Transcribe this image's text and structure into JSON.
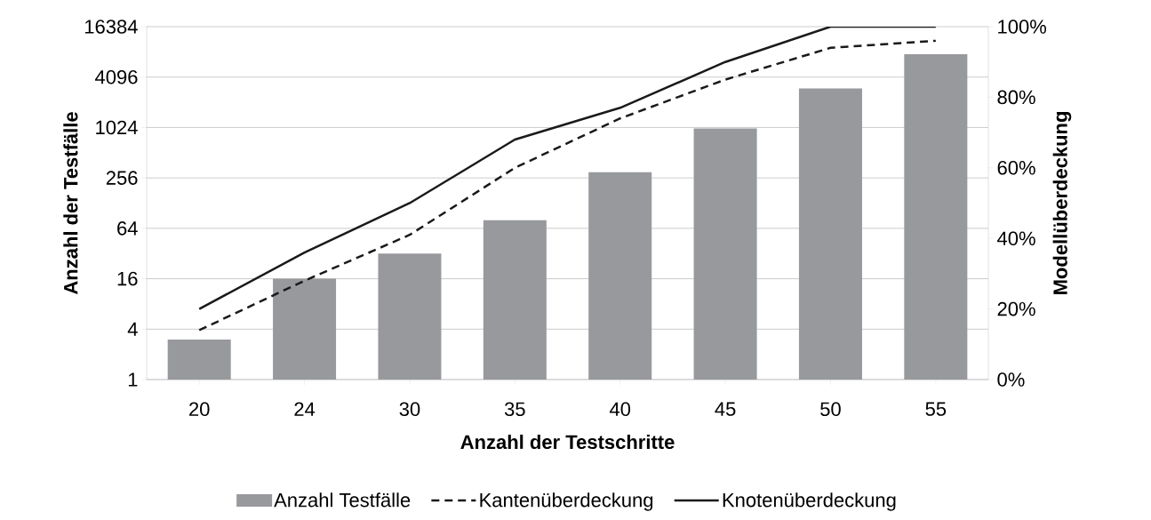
{
  "chart_data": {
    "type": "bar",
    "xlabel": "Anzahl der Testschritte",
    "ylabel": "Anzahl der Testfälle",
    "y2label": "Modellüberdeckung",
    "categories": [
      "20",
      "24",
      "30",
      "35",
      "40",
      "45",
      "50",
      "55"
    ],
    "series": [
      {
        "name": "Anzahl Testfälle",
        "color": "#97999c",
        "values": [
          3,
          16,
          32,
          80,
          300,
          1000,
          3000,
          7700
        ]
      },
      {
        "name": "Kantenüberdeckung",
        "type": "line",
        "axis": "y2",
        "color": "#1a1a1a",
        "line_style": "dashed",
        "values": [
          14,
          28,
          41,
          60,
          74,
          85,
          94,
          96
        ]
      },
      {
        "name": "Knotenüberdeckung",
        "type": "line",
        "axis": "y2",
        "color": "#1a1a1a",
        "line_style": "solid",
        "values": [
          20,
          36,
          50,
          68,
          77,
          90,
          100,
          100
        ]
      }
    ],
    "log": "y",
    "ylim": [
      1,
      16384
    ],
    "yticks": [
      1,
      4,
      16,
      64,
      256,
      1024,
      4096,
      16384
    ],
    "y2lim": [
      0,
      100
    ],
    "y2ticks": [
      {
        "value": 0,
        "label": "0%"
      },
      {
        "value": 20,
        "label": "20%"
      },
      {
        "value": 40,
        "label": "40%"
      },
      {
        "value": 60,
        "label": "60%"
      },
      {
        "value": 80,
        "label": "80%"
      },
      {
        "value": 100,
        "label": "100%"
      }
    ],
    "grid": "y",
    "legend": "bottom",
    "marker": "none"
  }
}
